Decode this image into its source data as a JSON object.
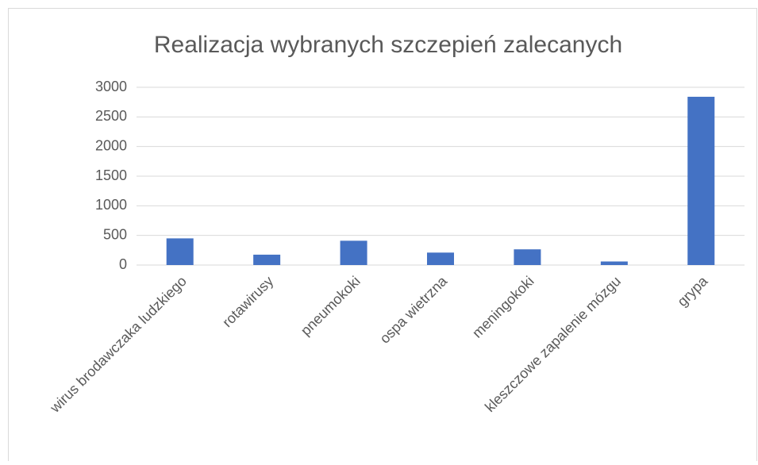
{
  "chart_data": {
    "type": "bar",
    "title": "Realizacja wybranych szczepień zalecanych",
    "categories": [
      "wirus brodawczaka ludzkiego",
      "rotawirusy",
      "pneumokoki",
      "ospa wietrzna",
      "meningokoki",
      "kleszczowe zapalenie mózgu",
      "grypa"
    ],
    "values": [
      450,
      175,
      410,
      210,
      265,
      60,
      2840
    ],
    "color": "#4472c4",
    "ylim": [
      0,
      3000
    ],
    "yticks": [
      0,
      500,
      1000,
      1500,
      2000,
      2500,
      3000
    ],
    "grid": true
  }
}
